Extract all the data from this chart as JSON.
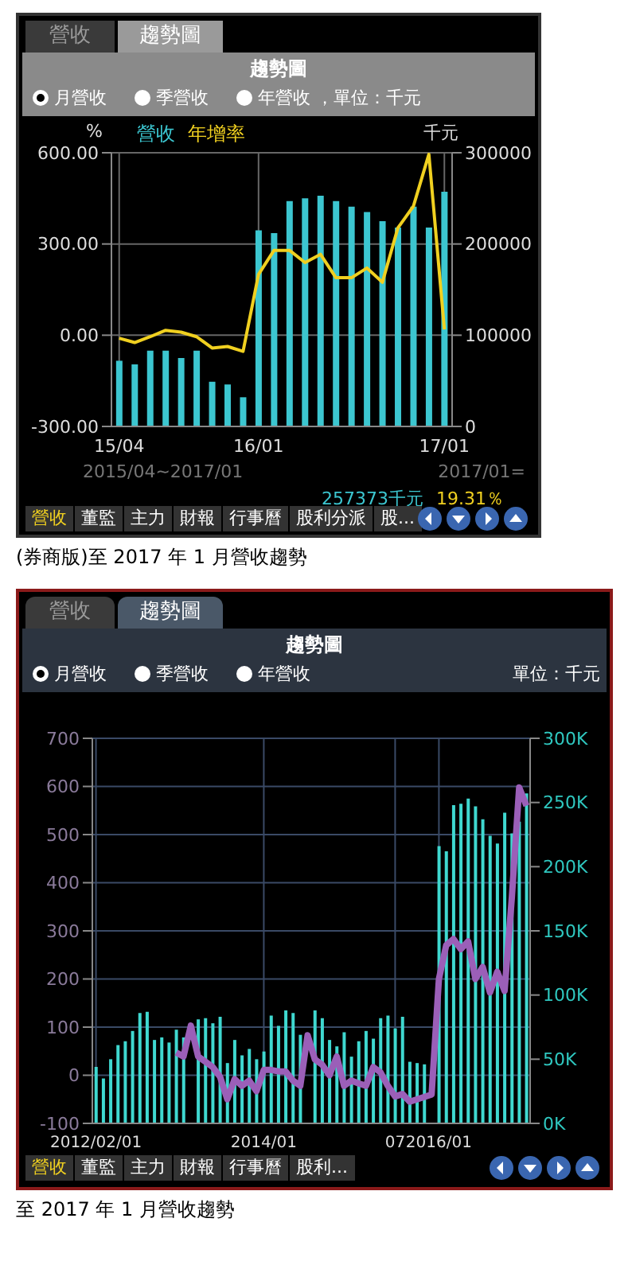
{
  "chart_data": [
    {
      "type": "bar",
      "title": "趨勢圖",
      "ylabel": "%",
      "y2label": "千元",
      "categories": [
        "15/04",
        null,
        null,
        null,
        null,
        null,
        null,
        null,
        null,
        "16/01",
        null,
        null,
        null,
        null,
        null,
        null,
        null,
        null,
        null,
        null,
        null,
        "17/01"
      ],
      "series": [
        {
          "name": "營收",
          "axis": "y2",
          "color": "#3cc6d0",
          "values": [
            72000,
            68000,
            83000,
            83000,
            75000,
            83000,
            49000,
            46000,
            32000,
            215000,
            212000,
            247000,
            250000,
            253000,
            247000,
            241000,
            235000,
            225000,
            218000,
            241000,
            218000,
            257373
          ]
        },
        {
          "name": "年增率",
          "type": "line",
          "color": "#f0d020",
          "values": [
            -10,
            -24,
            -5,
            16,
            10,
            -5,
            -42,
            -37,
            -53,
            200,
            279,
            279,
            239,
            266,
            189,
            189,
            221,
            174,
            353,
            424,
            595,
            19.31
          ]
        }
      ],
      "ylim": [
        -300,
        600
      ],
      "yticks": [
        {
          "value": -300,
          "label": "-300.00"
        },
        {
          "value": 0,
          "label": "0.00"
        },
        {
          "value": 300,
          "label": "300.00"
        },
        {
          "value": 600,
          "label": "600.00"
        }
      ],
      "y2lim": [
        0,
        300000
      ],
      "y2ticks": [
        0,
        100000,
        200000,
        300000
      ],
      "grid": true,
      "legend": "top left",
      "marker": "none",
      "line_style": "solid",
      "annotations": [
        "營收",
        "趨勢圖",
        "月營收",
        "季營收",
        "年營收 ，單位：千元",
        "2015/04~2017/01",
        "2017/01=",
        "257373千元",
        "19.31％",
        "營收",
        "董監",
        "主力",
        "財報",
        "行事曆",
        "股利分派",
        "股...",
        "(券商版)至 2017 年 1 月營收趨勢"
      ]
    },
    {
      "type": "bar",
      "title": "趨勢圖",
      "categories": [
        "2012/02/01",
        null,
        null,
        null,
        null,
        null,
        null,
        null,
        null,
        null,
        null,
        null,
        null,
        null,
        null,
        null,
        null,
        null,
        null,
        null,
        null,
        null,
        null,
        "2014/01",
        null,
        null,
        null,
        null,
        null,
        null,
        null,
        null,
        null,
        null,
        null,
        null,
        null,
        null,
        null,
        null,
        null,
        "07",
        null,
        null,
        null,
        null,
        null,
        "2016/01",
        null,
        null,
        null,
        null,
        null,
        null,
        null,
        null,
        null,
        null,
        null,
        null
      ],
      "series": [
        {
          "axis": "y2",
          "color": "#3fd8d0",
          "values": [
            44000,
            35000,
            50000,
            61000,
            64000,
            72000,
            86000,
            87000,
            65000,
            67000,
            63000,
            73000,
            67000,
            null,
            81000,
            82000,
            78000,
            83000,
            47000,
            65000,
            53000,
            58000,
            50000,
            56000,
            84000,
            76000,
            88000,
            86000,
            69000,
            null,
            88000,
            82000,
            65000,
            60000,
            71000,
            52000,
            64000,
            72000,
            66000,
            82000,
            84000,
            74000,
            83000,
            48000,
            47000,
            46000,
            null,
            216000,
            212000,
            248000,
            249000,
            253000,
            247000,
            237000,
            224000,
            218000,
            242000,
            226000,
            235000,
            257000
          ]
        },
        {
          "type": "line",
          "color": "#9b5fb8",
          "values": [
            null,
            null,
            null,
            null,
            null,
            null,
            null,
            null,
            null,
            null,
            null,
            47,
            39,
            103,
            39,
            28,
            17,
            -3,
            -50,
            -8,
            -22,
            -11,
            -33,
            11,
            11,
            8,
            8,
            -11,
            -22,
            83,
            33,
            22,
            0,
            39,
            -22,
            -11,
            -17,
            -22,
            17,
            6,
            -22,
            -44,
            -39,
            -55,
            -50,
            -45,
            -40,
            200,
            270,
            283,
            262,
            278,
            200,
            225,
            172,
            215,
            175,
            370,
            598,
            560
          ]
        }
      ],
      "ylim": [
        -100,
        700
      ],
      "yticks": [
        -100,
        0,
        100,
        200,
        300,
        400,
        500,
        600,
        700
      ],
      "y2lim": [
        0,
        300000
      ],
      "y2ticks": [
        {
          "value": 0,
          "label": "0K"
        },
        {
          "value": 50000,
          "label": "50K"
        },
        {
          "value": 100000,
          "label": "100K"
        },
        {
          "value": 150000,
          "label": "150K"
        },
        {
          "value": 200000,
          "label": "200K"
        },
        {
          "value": 250000,
          "label": "250K"
        },
        {
          "value": 300000,
          "label": "300K"
        }
      ],
      "grid": true,
      "marker": "none",
      "line_style": "solid",
      "annotations": [
        "營收",
        "趨勢圖",
        "月營收",
        "季營收",
        "年營收",
        "單位：千元",
        "營收",
        "董監",
        "主力",
        "財報",
        "行事曆",
        "股利...",
        "至 2017 年 1 月營收趨勢"
      ]
    }
  ]
}
